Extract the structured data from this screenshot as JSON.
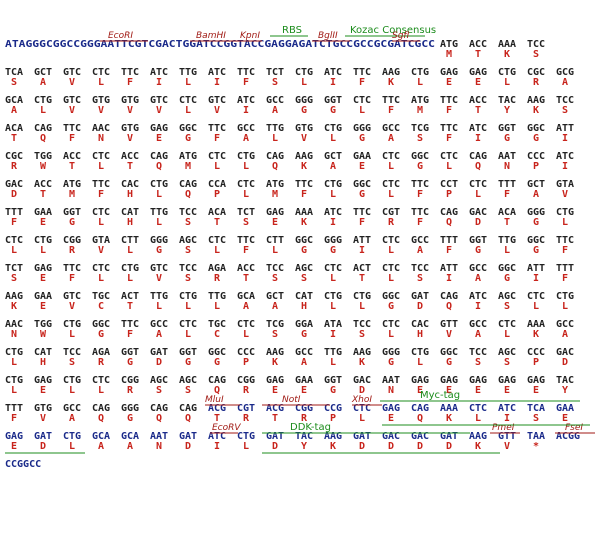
{
  "header_sequence": "ATAGGGCGGCCGGGAATTCGTCGACTGGATCCGGTACCGAGGAGATCTGCCGCCGCGATCGCC",
  "rows": [
    {
      "codons": [
        "ATG",
        "ACC",
        "AAA",
        "TCC"
      ],
      "amino_acids": [
        "M",
        "T",
        "K",
        "S"
      ]
    },
    {
      "codons": [
        "TCA",
        "GCT",
        "GTC",
        "CTC",
        "TTC",
        "ATC",
        "TTG",
        "ATC",
        "TTC",
        "TCT",
        "CTG",
        "ATC",
        "TTC",
        "AAG",
        "CTG",
        "GAG",
        "GAG",
        "CTG",
        "CGC",
        "GCG"
      ],
      "amino_acids": [
        "S",
        "A",
        "V",
        "L",
        "F",
        "I",
        "L",
        "I",
        "F",
        "S",
        "L",
        "I",
        "F",
        "K",
        "L",
        "E",
        "E",
        "L",
        "R",
        "A"
      ]
    },
    {
      "codons": [
        "GCA",
        "CTG",
        "GTC",
        "GTG",
        "GTG",
        "GTC",
        "CTC",
        "GTC",
        "ATC",
        "GCC",
        "GGG",
        "GGT",
        "CTC",
        "TTC",
        "ATG",
        "TTC",
        "ACC",
        "TAC",
        "AAG",
        "TCC"
      ],
      "amino_acids": [
        "A",
        "L",
        "V",
        "V",
        "V",
        "V",
        "L",
        "V",
        "I",
        "A",
        "G",
        "G",
        "L",
        "F",
        "M",
        "F",
        "T",
        "Y",
        "K",
        "S"
      ]
    },
    {
      "codons": [
        "ACA",
        "CAG",
        "TTC",
        "AAC",
        "GTG",
        "GAG",
        "GGC",
        "TTC",
        "GCC",
        "TTG",
        "GTG",
        "CTG",
        "GGG",
        "GCC",
        "TCG",
        "TTC",
        "ATC",
        "GGT",
        "GGC",
        "ATT"
      ],
      "amino_acids": [
        "T",
        "Q",
        "F",
        "N",
        "V",
        "E",
        "G",
        "F",
        "A",
        "L",
        "V",
        "L",
        "G",
        "A",
        "S",
        "F",
        "I",
        "G",
        "G",
        "I"
      ]
    },
    {
      "codons": [
        "CGC",
        "TGG",
        "ACC",
        "CTC",
        "ACC",
        "CAG",
        "ATG",
        "CTC",
        "CTG",
        "CAG",
        "AAG",
        "GCT",
        "GAA",
        "CTC",
        "GGC",
        "CTC",
        "CAG",
        "AAT",
        "CCC",
        "ATC"
      ],
      "amino_acids": [
        "R",
        "W",
        "T",
        "L",
        "T",
        "Q",
        "M",
        "L",
        "L",
        "Q",
        "K",
        "A",
        "E",
        "L",
        "G",
        "L",
        "Q",
        "N",
        "P",
        "I"
      ]
    },
    {
      "codons": [
        "GAC",
        "ACC",
        "ATG",
        "TTC",
        "CAC",
        "CTG",
        "CAG",
        "CCA",
        "CTC",
        "ATG",
        "TTC",
        "CTG",
        "GGC",
        "CTC",
        "TTC",
        "CCT",
        "CTC",
        "TTT",
        "GCT",
        "GTA"
      ],
      "amino_acids": [
        "D",
        "T",
        "M",
        "F",
        "H",
        "L",
        "Q",
        "P",
        "L",
        "M",
        "F",
        "L",
        "G",
        "L",
        "F",
        "P",
        "L",
        "F",
        "A",
        "V"
      ]
    },
    {
      "codons": [
        "TTT",
        "GAA",
        "GGT",
        "CTC",
        "CAT",
        "TTG",
        "TCC",
        "ACA",
        "TCT",
        "GAG",
        "AAA",
        "ATC",
        "TTC",
        "CGT",
        "TTC",
        "CAG",
        "GAC",
        "ACA",
        "GGG",
        "CTG"
      ],
      "amino_acids": [
        "F",
        "E",
        "G",
        "L",
        "H",
        "L",
        "S",
        "T",
        "S",
        "E",
        "K",
        "I",
        "F",
        "R",
        "F",
        "Q",
        "D",
        "T",
        "G",
        "L"
      ]
    },
    {
      "codons": [
        "CTC",
        "CTG",
        "CGG",
        "GTA",
        "CTT",
        "GGG",
        "AGC",
        "CTC",
        "TTC",
        "CTT",
        "GGC",
        "GGG",
        "ATT",
        "CTC",
        "GCC",
        "TTT",
        "GGT",
        "TTG",
        "GGC",
        "TTC"
      ],
      "amino_acids": [
        "L",
        "L",
        "R",
        "V",
        "L",
        "G",
        "S",
        "L",
        "F",
        "L",
        "G",
        "G",
        "I",
        "L",
        "A",
        "F",
        "G",
        "L",
        "G",
        "F"
      ]
    },
    {
      "codons": [
        "TCT",
        "GAG",
        "TTC",
        "CTC",
        "CTG",
        "GTC",
        "TCC",
        "AGA",
        "ACC",
        "TCC",
        "AGC",
        "CTC",
        "ACT",
        "CTC",
        "TCC",
        "ATT",
        "GCC",
        "GGC",
        "ATT",
        "TTT"
      ],
      "amino_acids": [
        "S",
        "E",
        "F",
        "L",
        "L",
        "V",
        "S",
        "R",
        "T",
        "S",
        "S",
        "L",
        "T",
        "L",
        "S",
        "I",
        "A",
        "G",
        "I",
        "F"
      ]
    },
    {
      "codons": [
        "AAG",
        "GAA",
        "GTC",
        "TGC",
        "ACT",
        "TTG",
        "CTG",
        "TTG",
        "GCA",
        "GCT",
        "CAT",
        "CTG",
        "CTG",
        "GGC",
        "GAT",
        "CAG",
        "ATC",
        "AGC",
        "CTC",
        "CTG"
      ],
      "amino_acids": [
        "K",
        "E",
        "V",
        "C",
        "T",
        "L",
        "L",
        "L",
        "A",
        "A",
        "H",
        "L",
        "L",
        "G",
        "D",
        "Q",
        "I",
        "S",
        "L",
        "L"
      ]
    },
    {
      "codons": [
        "AAC",
        "TGG",
        "CTG",
        "GGC",
        "TTC",
        "GCC",
        "CTC",
        "TGC",
        "CTC",
        "TCG",
        "GGA",
        "ATA",
        "TCC",
        "CTC",
        "CAC",
        "GTT",
        "GCC",
        "CTC",
        "AAA",
        "GCC"
      ],
      "amino_acids": [
        "N",
        "W",
        "L",
        "G",
        "F",
        "A",
        "L",
        "C",
        "L",
        "S",
        "G",
        "I",
        "S",
        "L",
        "H",
        "V",
        "A",
        "L",
        "K",
        "A"
      ]
    },
    {
      "codons": [
        "CTG",
        "CAT",
        "TCC",
        "AGA",
        "GGT",
        "GAT",
        "GGT",
        "GGC",
        "CCC",
        "AAG",
        "GCC",
        "TTG",
        "AAG",
        "GGG",
        "CTG",
        "GGC",
        "TCC",
        "AGC",
        "CCC",
        "GAC"
      ],
      "amino_acids": [
        "L",
        "H",
        "S",
        "R",
        "G",
        "D",
        "G",
        "G",
        "P",
        "K",
        "A",
        "L",
        "K",
        "G",
        "L",
        "G",
        "S",
        "S",
        "P",
        "D"
      ]
    },
    {
      "codons": [
        "CTG",
        "GAG",
        "CTG",
        "CTC",
        "CGG",
        "AGC",
        "AGC",
        "CAG",
        "CGG",
        "GAG",
        "GAA",
        "GGT",
        "GAC",
        "AAT",
        "GAG",
        "GAG",
        "GAG",
        "GAG",
        "GAG",
        "TAC"
      ],
      "amino_acids": [
        "L",
        "E",
        "L",
        "L",
        "R",
        "S",
        "S",
        "Q",
        "R",
        "E",
        "E",
        "G",
        "D",
        "N",
        "E",
        "E",
        "E",
        "E",
        "E",
        "Y"
      ]
    },
    {
      "codons": [
        "TTT",
        "GTG",
        "GCC",
        "CAG",
        "GGG",
        "CAG",
        "CAG",
        "ACG",
        "CGT",
        "ACG",
        "CGG",
        "CCG",
        "CTC",
        "GAG",
        "CAG",
        "AAA",
        "CTC",
        "ATC",
        "TCA",
        "GAA"
      ],
      "amino_acids": [
        "F",
        "V",
        "A",
        "Q",
        "G",
        "Q",
        "Q",
        "T",
        "R",
        "T",
        "R",
        "P",
        "L",
        "E",
        "Q",
        "K",
        "L",
        "I",
        "S",
        "E"
      ]
    },
    {
      "codons": [
        "GAG",
        "GAT",
        "CTG",
        "GCA",
        "GCA",
        "AAT",
        "GAT",
        "ATC",
        "CTG",
        "GAT",
        "TAC",
        "AAG",
        "GAT",
        "GAC",
        "GAC",
        "GAT",
        "AAG",
        "GTT",
        "TAA",
        "ACGG"
      ],
      "amino_acids": [
        "E",
        "D",
        "L",
        "A",
        "A",
        "N",
        "D",
        "I",
        "L",
        "D",
        "Y",
        "K",
        "D",
        "D",
        "D",
        "D",
        "K",
        "V",
        "*",
        null
      ]
    }
  ],
  "tail_sequence": "CCGGCC",
  "features": [
    {
      "label": "EcoRI"
    },
    {
      "label": "BamHI"
    },
    {
      "label": "KpnI"
    },
    {
      "label": "RBS"
    },
    {
      "label": "BglII"
    },
    {
      "label": "Kozac Consensus"
    },
    {
      "label": "SgfI"
    },
    {
      "label": "MluI"
    },
    {
      "label": "NotI"
    },
    {
      "label": "XhoI"
    },
    {
      "label": "Myc-tag"
    },
    {
      "label": "EcoRV"
    },
    {
      "label": "DDK-tag"
    },
    {
      "label": "PmeI"
    },
    {
      "label": "FseI"
    }
  ]
}
